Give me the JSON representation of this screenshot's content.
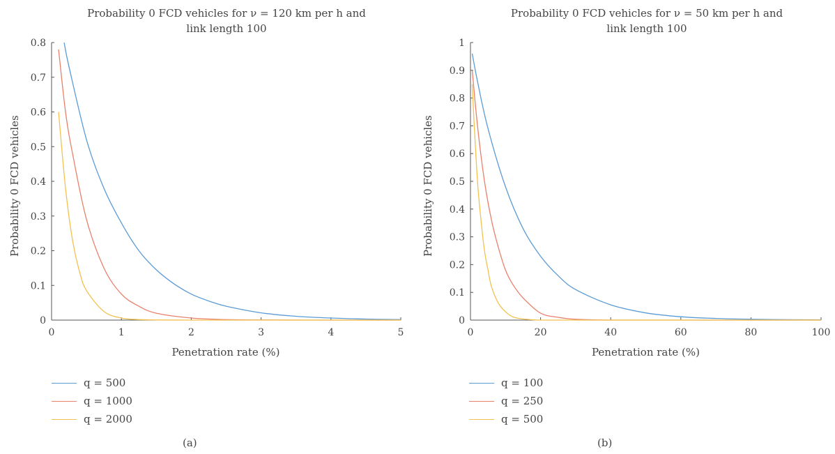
{
  "chart_data": [
    {
      "type": "line",
      "panel_label": "(a)",
      "title_line1": "Probability 0 FCD vehicles for ν = 120 km per h and",
      "title_line2": "link length 100",
      "xlabel": "Penetration rate (%)",
      "ylabel": "Probability 0 FCD vehicles",
      "xlim": [
        0,
        5
      ],
      "ylim": [
        0,
        0.8
      ],
      "xticks": [
        "0",
        "1",
        "2",
        "3",
        "4",
        "5"
      ],
      "yticks": [
        "0",
        "0.1",
        "0.2",
        "0.3",
        "0.4",
        "0.5",
        "0.6",
        "0.7",
        "0.8"
      ],
      "legend_position": "below",
      "grid": false,
      "series": [
        {
          "name": "q = 500",
          "color": "#5b9bd5",
          "x": [
            0.18,
            0.25,
            0.5,
            0.75,
            1,
            1.25,
            1.5,
            1.75,
            2,
            2.25,
            2.5,
            3,
            3.5,
            4,
            4.5,
            5
          ],
          "y": [
            0.8,
            0.73,
            0.52,
            0.38,
            0.28,
            0.2,
            0.145,
            0.105,
            0.075,
            0.055,
            0.04,
            0.021,
            0.011,
            0.006,
            0.003,
            0.0015
          ]
        },
        {
          "name": "q = 1000",
          "color": "#e8806a",
          "x": [
            0.1,
            0.2,
            0.3,
            0.5,
            0.75,
            1,
            1.25,
            1.5,
            2,
            2.5,
            3,
            4,
            5
          ],
          "y": [
            0.78,
            0.6,
            0.48,
            0.29,
            0.15,
            0.075,
            0.04,
            0.02,
            0.006,
            0.0015,
            0.0004,
            0,
            0
          ]
        },
        {
          "name": "q = 2000",
          "color": "#f2c14e",
          "x": [
            0.1,
            0.2,
            0.3,
            0.4,
            0.5,
            0.75,
            1,
            1.25,
            1.5,
            2,
            3,
            4,
            5
          ],
          "y": [
            0.6,
            0.38,
            0.23,
            0.14,
            0.085,
            0.025,
            0.006,
            0.0015,
            0.0004,
            0,
            0,
            0,
            0
          ]
        }
      ]
    },
    {
      "type": "line",
      "panel_label": "(b)",
      "title_line1": "Probability 0 FCD vehicles for ν = 50 km per h and",
      "title_line2": "link length 100",
      "xlabel": "Penetration rate (%)",
      "ylabel": "Probability 0 FCD vehicles",
      "xlim": [
        0,
        100
      ],
      "ylim": [
        0,
        1
      ],
      "xticks": [
        "0",
        "20",
        "40",
        "60",
        "80",
        "100"
      ],
      "yticks": [
        "0",
        "0.1",
        "0.2",
        "0.3",
        "0.4",
        "0.5",
        "0.6",
        "0.7",
        "0.8",
        "0.9",
        "1"
      ],
      "legend_position": "below",
      "grid": false,
      "series": [
        {
          "name": "q = 100",
          "color": "#5b9bd5",
          "x": [
            0.5,
            2,
            5,
            10,
            15,
            20,
            25,
            30,
            40,
            50,
            60,
            70,
            80,
            90,
            100
          ],
          "y": [
            0.96,
            0.86,
            0.69,
            0.48,
            0.33,
            0.23,
            0.16,
            0.11,
            0.055,
            0.026,
            0.012,
            0.006,
            0.003,
            0.0015,
            0.001
          ]
        },
        {
          "name": "q = 250",
          "color": "#e8806a",
          "x": [
            0.5,
            2,
            4,
            6,
            8,
            10,
            12,
            15,
            20,
            25,
            30,
            40,
            60,
            100
          ],
          "y": [
            0.9,
            0.7,
            0.5,
            0.36,
            0.26,
            0.18,
            0.13,
            0.08,
            0.025,
            0.01,
            0.003,
            0,
            0,
            0
          ]
        },
        {
          "name": "q = 500",
          "color": "#f2c14e",
          "x": [
            0.5,
            1,
            2,
            3,
            4,
            5,
            6,
            8,
            10,
            12,
            15,
            20,
            30,
            100
          ],
          "y": [
            0.85,
            0.72,
            0.5,
            0.36,
            0.25,
            0.18,
            0.12,
            0.06,
            0.03,
            0.012,
            0.004,
            0,
            0,
            0
          ]
        }
      ]
    }
  ]
}
